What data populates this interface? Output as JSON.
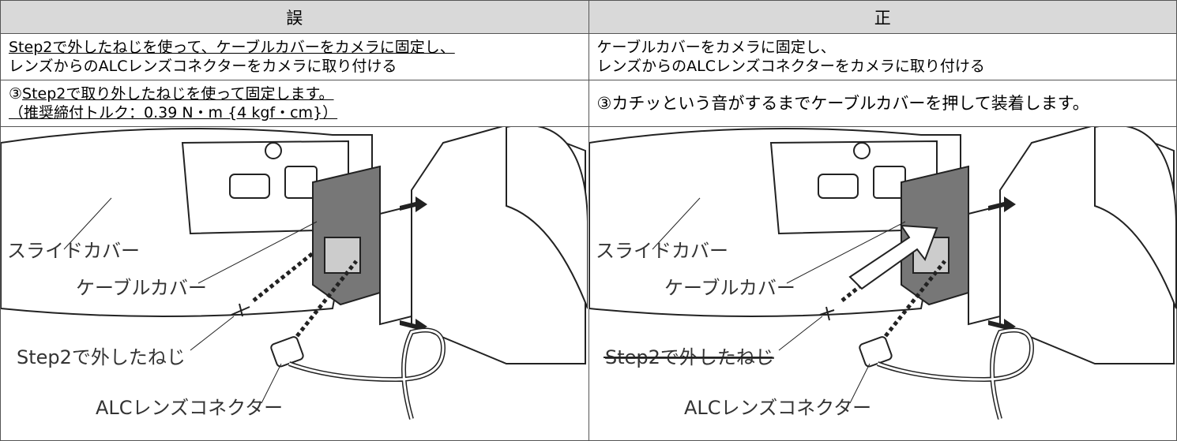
{
  "table": {
    "header": [
      "誤",
      "正"
    ],
    "rows": [
      [
        [
          "Step2で外したねじを使って、ケーブルカバーをカメラに固定し、",
          "レンズからのALCレンズコネクターをカメラに取り付ける"
        ],
        [
          "ケーブルカバーをカメラに固定し、",
          "レンズからのALCレンズコネクターをカメラに取り付ける"
        ]
      ],
      [
        [
          "③",
          "Step2で取り外したねじを使って固定します。",
          "（推奨締付トルク：0.39 N・m {4 kgf・cm}）"
        ],
        [
          "③カチッという音がするまでケーブルカバーを押して装着します。"
        ]
      ]
    ]
  },
  "figures": [
    {
      "labels": [
        "スライドカバー",
        "ケーブルカバー",
        "Step2で外したねじ",
        "ALCレンズコネクター"
      ]
    },
    {
      "labels": [
        "スライドカバー",
        "ケーブルカバー",
        "Step2で外したねじ",
        "ALCレンズコネクター"
      ]
    }
  ]
}
